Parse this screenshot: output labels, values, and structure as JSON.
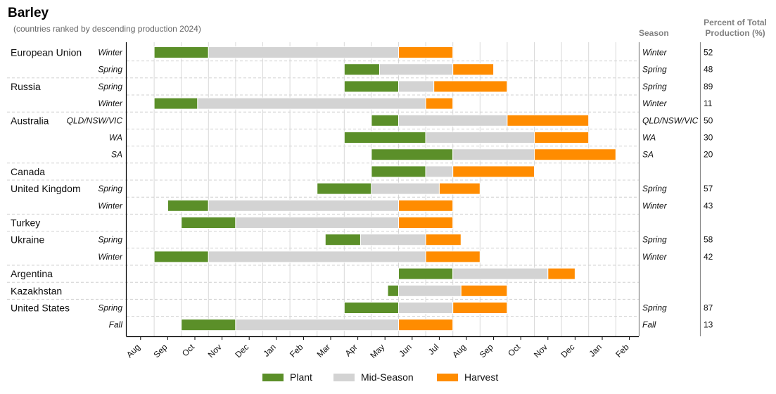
{
  "chart_data": {
    "type": "bar",
    "title": "Barley",
    "subtitle": "(countries ranked by descending production 2024)",
    "season_header": "Season",
    "percent_header_line1": "Percent of Total",
    "percent_header_line2": "Production (%)",
    "months": [
      "Aug",
      "Sep",
      "Oct",
      "Nov",
      "Dec",
      "Jan",
      "Feb",
      "Mar",
      "Apr",
      "May",
      "Jun",
      "Jul",
      "Aug",
      "Sep",
      "Oct",
      "Nov",
      "Dec",
      "Jan",
      "Feb"
    ],
    "legend": [
      {
        "key": "plant",
        "label": "Plant",
        "color": "#5b8f29"
      },
      {
        "key": "mid",
        "label": "Mid-Season",
        "color": "#d3d3d3"
      },
      {
        "key": "harvest",
        "label": "Harvest",
        "color": "#ff8c00"
      }
    ],
    "rows": [
      {
        "country": "European Union",
        "season": "Winter",
        "percent": "52",
        "plant": [
          1.0,
          3.0
        ],
        "mid": [
          3.0,
          10.0
        ],
        "harvest": [
          10.0,
          12.0
        ]
      },
      {
        "country": "",
        "season": "Spring",
        "percent": "48",
        "plant": [
          8.0,
          9.3
        ],
        "mid": [
          9.3,
          12.0
        ],
        "harvest": [
          12.0,
          13.5
        ]
      },
      {
        "country": "Russia",
        "season": "Spring",
        "percent": "89",
        "plant": [
          8.0,
          10.0
        ],
        "mid": [
          10.0,
          11.3
        ],
        "harvest": [
          11.3,
          14.0
        ]
      },
      {
        "country": "",
        "season": "Winter",
        "percent": "11",
        "plant": [
          1.0,
          2.6
        ],
        "mid": [
          2.6,
          11.0
        ],
        "harvest": [
          11.0,
          12.0
        ]
      },
      {
        "country": "Australia",
        "season": "QLD/NSW/VIC",
        "percent": "50",
        "plant": [
          9.0,
          10.0
        ],
        "mid": [
          10.0,
          14.0
        ],
        "harvest": [
          14.0,
          17.0
        ]
      },
      {
        "country": "",
        "season": "WA",
        "percent": "30",
        "plant": [
          8.0,
          11.0
        ],
        "mid": [
          11.0,
          15.0
        ],
        "harvest": [
          15.0,
          17.0
        ]
      },
      {
        "country": "",
        "season": "SA",
        "percent": "20",
        "plant": [
          9.0,
          12.0
        ],
        "mid": [
          12.0,
          15.0
        ],
        "harvest": [
          15.0,
          18.0
        ]
      },
      {
        "country": "Canada",
        "season": "",
        "percent": "",
        "plant": [
          9.0,
          11.0
        ],
        "mid": [
          11.0,
          12.0
        ],
        "harvest": [
          12.0,
          15.0
        ]
      },
      {
        "country": "United Kingdom",
        "season": "Spring",
        "percent": "57",
        "plant": [
          7.0,
          9.0
        ],
        "mid": [
          9.0,
          11.5
        ],
        "harvest": [
          11.5,
          13.0
        ]
      },
      {
        "country": "",
        "season": "Winter",
        "percent": "43",
        "plant": [
          1.5,
          3.0
        ],
        "mid": [
          3.0,
          10.0
        ],
        "harvest": [
          10.0,
          12.0
        ]
      },
      {
        "country": "Turkey",
        "season": "",
        "percent": "",
        "plant": [
          2.0,
          4.0
        ],
        "mid": [
          4.0,
          10.0
        ],
        "harvest": [
          10.0,
          12.0
        ]
      },
      {
        "country": "Ukraine",
        "season": "Spring",
        "percent": "58",
        "plant": [
          7.3,
          8.6
        ],
        "mid": [
          8.6,
          11.0
        ],
        "harvest": [
          11.0,
          12.3
        ]
      },
      {
        "country": "",
        "season": "Winter",
        "percent": "42",
        "plant": [
          1.0,
          3.0
        ],
        "mid": [
          3.0,
          11.0
        ],
        "harvest": [
          11.0,
          13.0
        ]
      },
      {
        "country": "Argentina",
        "season": "",
        "percent": "",
        "plant": [
          10.0,
          12.0
        ],
        "mid": [
          12.0,
          15.5
        ],
        "harvest": [
          15.5,
          16.5
        ]
      },
      {
        "country": "Kazakhstan",
        "season": "",
        "percent": "",
        "plant": [
          9.6,
          10.0
        ],
        "mid": [
          10.0,
          12.3
        ],
        "harvest": [
          12.3,
          14.0
        ]
      },
      {
        "country": "United States",
        "season": "Spring",
        "percent": "87",
        "plant": [
          8.0,
          10.0
        ],
        "mid": [
          10.0,
          12.0
        ],
        "harvest": [
          12.0,
          14.0
        ]
      },
      {
        "country": "",
        "season": "Fall",
        "percent": "13",
        "plant": [
          2.0,
          4.0
        ],
        "mid": [
          4.0,
          10.0
        ],
        "harvest": [
          10.0,
          12.0
        ]
      }
    ],
    "groups": [
      [
        0,
        1
      ],
      [
        2,
        3
      ],
      [
        4,
        5,
        6
      ],
      [
        7
      ],
      [
        8,
        9
      ],
      [
        10
      ],
      [
        11,
        12
      ],
      [
        13
      ],
      [
        14
      ],
      [
        15,
        16
      ]
    ]
  }
}
